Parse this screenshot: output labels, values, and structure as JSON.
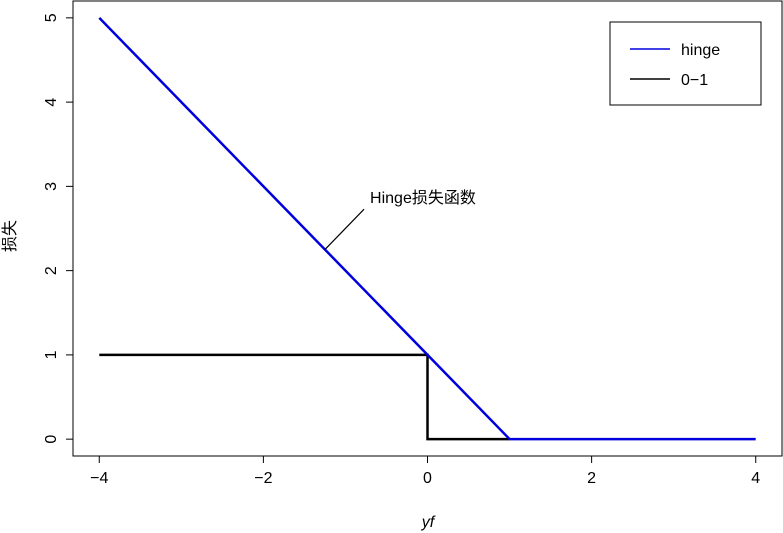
{
  "chart_data": {
    "type": "line",
    "title": "",
    "xlabel": "yf",
    "ylabel": "损失",
    "xlim": [
      -4.32,
      4.32
    ],
    "ylim": [
      -0.2,
      5.2
    ],
    "xticks": [
      -4,
      -2,
      0,
      2,
      4
    ],
    "xtick_labels": [
      "−4",
      "−2",
      "0",
      "2",
      "4"
    ],
    "yticks": [
      0,
      1,
      2,
      3,
      4,
      5
    ],
    "ytick_labels": [
      "0",
      "1",
      "2",
      "3",
      "4",
      "5"
    ],
    "grid": false,
    "legend_position": "top-right",
    "series": [
      {
        "name": "hinge",
        "color": "#0000dd",
        "x": [
          -4,
          1,
          4
        ],
        "y": [
          5,
          0,
          0
        ]
      },
      {
        "name": "0−1",
        "color": "#000000",
        "x": [
          -4,
          0,
          0,
          1
        ],
        "y": [
          1,
          1,
          0,
          0
        ]
      }
    ],
    "annotations": [
      {
        "text": "Hinge损失函数",
        "point": [
          -1.25,
          2.25
        ],
        "text_anchor": [
          -0.7,
          2.8
        ]
      }
    ]
  }
}
